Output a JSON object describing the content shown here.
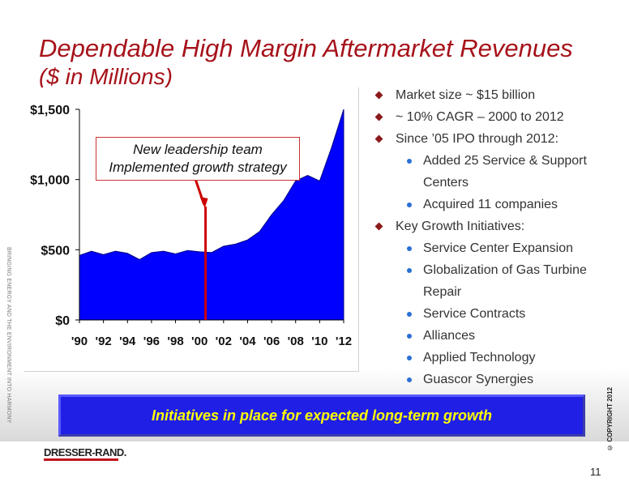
{
  "slide": {
    "title": "Dependable High Margin Aftermarket Revenues",
    "subtitle": "($ in Millions)",
    "side_text": "BRINGING ENERGY AND THE ENVIRONMENT INTO HARMONY",
    "callout_line1": "New leadership team",
    "callout_line2": "Implemented growth strategy",
    "banner": "Initiatives in place for expected long-term growth",
    "copyright": "© COPYRIGHT 2012",
    "logo": "DRESSER-RAND.",
    "page_number": "11"
  },
  "bullets": {
    "b1": "Market size ~ $15 billion",
    "b2": "~ 10% CAGR – 2000 to 2012",
    "b3": "Since ’05 IPO through 2012:",
    "b3_sub1": "Added 25 Service & Support Centers",
    "b3_sub2": "Acquired 11 companies",
    "b4": "Key Growth Initiatives:",
    "b4_sub1": "Service Center Expansion",
    "b4_sub2": "Globalization of Gas Turbine Repair",
    "b4_sub3": "Service Contracts",
    "b4_sub4": "Alliances",
    "b4_sub5": "Applied Technology",
    "b4_sub6": "Guascor Synergies"
  },
  "colors": {
    "title": "#a6121a",
    "area_fill": "#0000ff",
    "marker_line": "#cc0000",
    "banner_bg": "#1f1fe6",
    "banner_text": "#ffff00"
  },
  "chart_data": {
    "type": "area",
    "x": [
      1990,
      1991,
      1992,
      1993,
      1994,
      1995,
      1996,
      1997,
      1998,
      1999,
      2000,
      2001,
      2002,
      2003,
      2004,
      2005,
      2006,
      2007,
      2008,
      2009,
      2010,
      2011,
      2012
    ],
    "series": [
      {
        "values": [
          460,
          490,
          465,
          490,
          475,
          430,
          480,
          490,
          470,
          495,
          485,
          480,
          525,
          540,
          570,
          630,
          750,
          850,
          990,
          1030,
          990,
          1230,
          1500
        ]
      }
    ],
    "x_tick_labels": [
      "'90",
      "'92",
      "'94",
      "'96",
      "'98",
      "'00",
      "'02",
      "'04",
      "'06",
      "'08",
      "'10",
      "'12"
    ],
    "y_tick_labels": [
      "$0",
      "$500",
      "$1,000",
      "$1,500"
    ],
    "y_ticks": [
      0,
      500,
      1000,
      1500
    ],
    "ylim": [
      0,
      1500
    ],
    "marker_x": 2000.5,
    "grid": false
  }
}
